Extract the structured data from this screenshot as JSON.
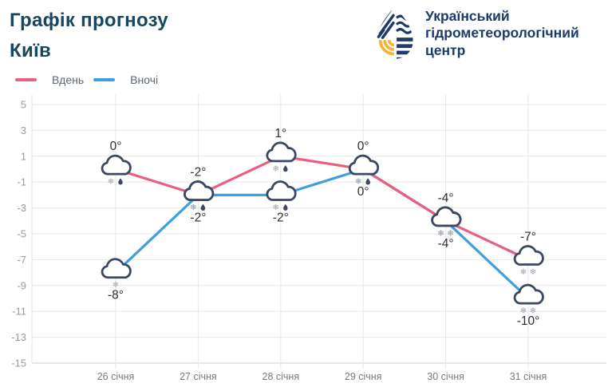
{
  "header": {
    "title": "Графік прогнозу",
    "city": "Київ"
  },
  "brand": {
    "name": "Український гідрометеорологічний центр"
  },
  "chart_data": {
    "type": "line",
    "title": "Графік прогнозу Київ",
    "x_categories": [
      "26 січня",
      "27 січня",
      "28 січня",
      "29 січня",
      "30 січня",
      "31 січня"
    ],
    "y_ticks": [
      5,
      3,
      1,
      -1,
      -3,
      -5,
      -7,
      -9,
      -11,
      -13,
      -15
    ],
    "ylim": [
      -15,
      5.8
    ],
    "grid": true,
    "legend_position": "top-left",
    "marker": "cloud-outline-with-precipitation",
    "series": [
      {
        "name": "Вдень",
        "color": "#EA5E7F",
        "values": [
          0,
          -2,
          1,
          0,
          -4,
          -7
        ],
        "point_labels": [
          "0°",
          "-2°",
          "1°",
          "0°",
          "-4°",
          "-7°"
        ],
        "precip": [
          "sleet",
          "sleet",
          "sleet",
          "sleet",
          "snow2",
          "snow2"
        ],
        "label_side": "above"
      },
      {
        "name": "Вночі",
        "color": "#3FA0DB",
        "values": [
          -8,
          -2,
          -2,
          0,
          -4,
          -10
        ],
        "point_labels": [
          "-8°",
          "-2°",
          "-2°",
          "0°",
          "-4°",
          "-10°"
        ],
        "precip": [
          "snow1",
          "sleet",
          "sleet",
          "sleet",
          "snow2",
          "snow2"
        ],
        "label_side": "below"
      }
    ]
  },
  "colors": {
    "title": "#17475E",
    "brand_text": "#1D3A6B",
    "legend_text": "#5C6673",
    "grid": "#E7E7E7",
    "axis": "#D2D2D2",
    "y_label": "#9A9A9A",
    "x_label": "#7A7A7A",
    "point_label": "#2F2F2F",
    "cloud_stroke": "#3B4861",
    "snowflake": "#9AA3B0",
    "raindrop": "#3C4961",
    "logo_navy": "#1E3A68",
    "logo_yellow": "#F5B32F"
  }
}
